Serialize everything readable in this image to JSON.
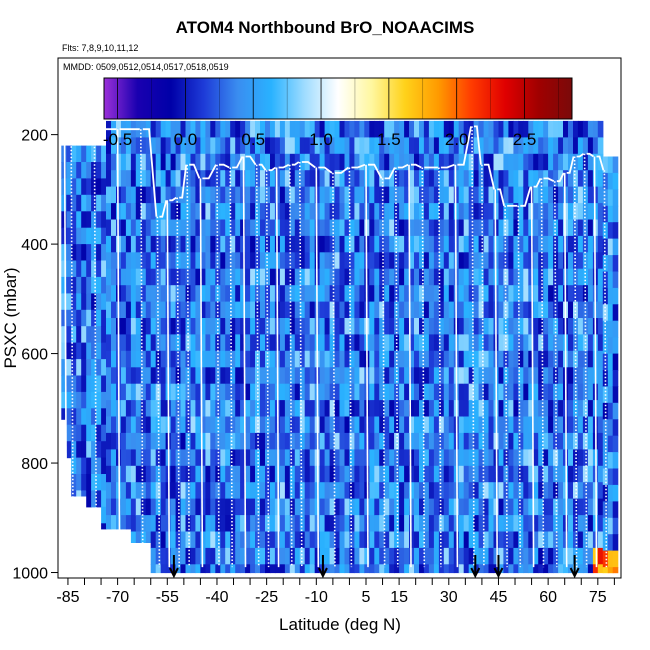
{
  "chart_data": {
    "type": "heatmap",
    "title": "ATOM4 Northbound BrO_NOAACIMS",
    "flights_label": "Flts: 7,8,9,10,11,12",
    "dates_label": "MMDD: 0509,0512,0514,0517,0518,0519",
    "xlabel": "Latitude (deg N)",
    "ylabel": "PSXC (mbar)",
    "xlim": [
      -88,
      82
    ],
    "ylim": [
      1010,
      60
    ],
    "x_ticks": [
      -85,
      -70,
      -55,
      -40,
      -25,
      -10,
      5,
      15,
      30,
      45,
      60,
      75
    ],
    "x_minor_step": 5,
    "y_ticks": [
      200,
      400,
      600,
      800,
      1000
    ],
    "colorbar": {
      "range": [
        -0.6,
        2.85
      ],
      "ticks": [
        -0.5,
        0.0,
        0.5,
        1.0,
        1.5,
        2.0,
        2.5
      ],
      "tick_labels": [
        "-0.5",
        "0.0",
        "0.5",
        "1.0",
        "1.5",
        "2.0",
        "2.5"
      ],
      "colors": [
        "#9b30d9",
        "#1a00b0",
        "#0000a8",
        "#1e3cd8",
        "#3a8df0",
        "#29b2ff",
        "#9fdcff",
        "#ffffff",
        "#fff7a0",
        "#ffd21a",
        "#ff9a00",
        "#ff3b00",
        "#e00000",
        "#a00000",
        "#7a0a0a"
      ]
    },
    "field_description": "BrO mixing ratio mostly -0.5 to 0.8 (blue); peaks up to ~2.4 near 75N at 950-1000 mbar",
    "profile_latitudes": [
      -86,
      -84,
      -77,
      -70,
      -63,
      -58,
      -55,
      -52,
      -49,
      -45,
      -40,
      -36,
      -32,
      -28,
      -25,
      -22,
      -18,
      -15,
      -10,
      -5,
      0,
      5,
      10,
      14,
      18,
      22,
      27,
      32,
      37,
      40,
      44,
      47,
      51,
      55,
      58,
      62,
      65,
      68,
      71,
      74,
      77
    ],
    "profile_top_pressure": [
      215,
      215,
      190,
      190,
      190,
      350,
      320,
      315,
      255,
      280,
      255,
      260,
      240,
      255,
      265,
      260,
      255,
      250,
      260,
      270,
      260,
      255,
      280,
      260,
      255,
      260,
      260,
      255,
      185,
      255,
      300,
      330,
      330,
      295,
      280,
      285,
      270,
      240,
      235,
      240,
      265
    ],
    "arrow_latitudes": [
      -53,
      -8,
      38,
      45,
      68
    ],
    "colors": {
      "profile": "#ffffff",
      "background": "#ffffff"
    }
  }
}
